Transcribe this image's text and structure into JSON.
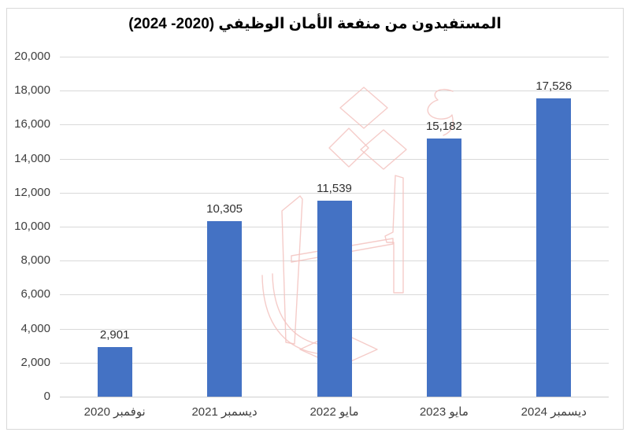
{
  "page": {
    "background": "#FFFFFF",
    "frame_border_color": "#D9D9D9"
  },
  "chart_data": {
    "type": "bar",
    "title": "المستفيدون من منفعة الأمان الوظيفي (2020- 2024)",
    "categories": [
      "نوفمبر 2020",
      "ديسمبر 2021",
      "مايو 2022",
      "مايو 2023",
      "ديسمبر 2024"
    ],
    "values": [
      2901,
      10305,
      11539,
      15182,
      17526
    ],
    "value_labels": [
      "2,901",
      "10,305",
      "11,539",
      "15,182",
      "17,526"
    ],
    "ylim": [
      0,
      20000
    ],
    "ytick_step": 2000,
    "yticks": [
      "0",
      "2,000",
      "4,000",
      "6,000",
      "8,000",
      "10,000",
      "12,000",
      "14,000",
      "16,000",
      "18,000",
      "20,000"
    ],
    "xlabel": "",
    "ylabel": "",
    "grid": true,
    "legend": false,
    "data_labels_shown": true,
    "bar_color": "#4472C4",
    "gridline_color": "#D9D9D9",
    "axis_label_color": "#404040",
    "title_color": "#000000",
    "watermark": {
      "name": "pink-calligraphy-watermark",
      "color": "#F3C3C0"
    }
  }
}
